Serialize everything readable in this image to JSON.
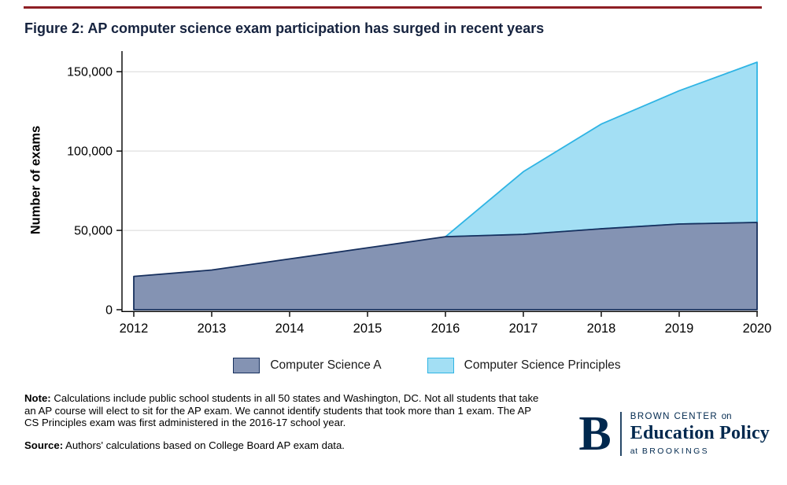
{
  "page": {
    "title": "Figure 2: AP computer science exam participation has surged in recent years",
    "accent_color": "#8e1f24"
  },
  "chart_data": {
    "type": "area",
    "stacked": true,
    "title": "Figure 2: AP computer science exam participation has surged in recent years",
    "xlabel": "",
    "ylabel": "Number of exams",
    "x": [
      2012,
      2013,
      2014,
      2015,
      2016,
      2017,
      2018,
      2019,
      2020
    ],
    "series": [
      {
        "name": "Computer Science A",
        "fill": "#8493b3",
        "stroke": "#17305e",
        "values": [
          21000,
          25000,
          32000,
          39000,
          46000,
          47500,
          51000,
          54000,
          55000
        ]
      },
      {
        "name": "Computer Science Principles",
        "fill": "#a3dff4",
        "stroke": "#2fb4e4",
        "values": [
          0,
          0,
          0,
          0,
          0,
          39500,
          66000,
          84000,
          101000
        ]
      }
    ],
    "stacked_totals": [
      21000,
      25000,
      32000,
      39000,
      46000,
      87000,
      117000,
      138000,
      156000
    ],
    "ylim": [
      0,
      163000
    ],
    "yticks": [
      0,
      50000,
      100000,
      150000
    ],
    "ytick_labels": [
      "0",
      "50,000",
      "100,000",
      "150,000"
    ],
    "grid": "horizontal",
    "legend_position": "bottom"
  },
  "notes": {
    "note_label": "Note:",
    "note_text": "Calculations include public school students in all 50 states and Washington, DC. Not all students that take an AP course will elect to sit for the AP exam. We cannot identify students that took more than 1 exam. The AP CS Principles exam was first administered in the 2016-17 school year.",
    "source_label": "Source:",
    "source_text": "Authors' calculations based on College Board AP exam data."
  },
  "logo": {
    "monogram": "B",
    "line1_caps": "BROWN CENTER",
    "line1_lower": "on",
    "line2": "Education Policy",
    "line3_lower": "at",
    "line3_caps": "BROOKINGS",
    "color": "#00284e"
  }
}
